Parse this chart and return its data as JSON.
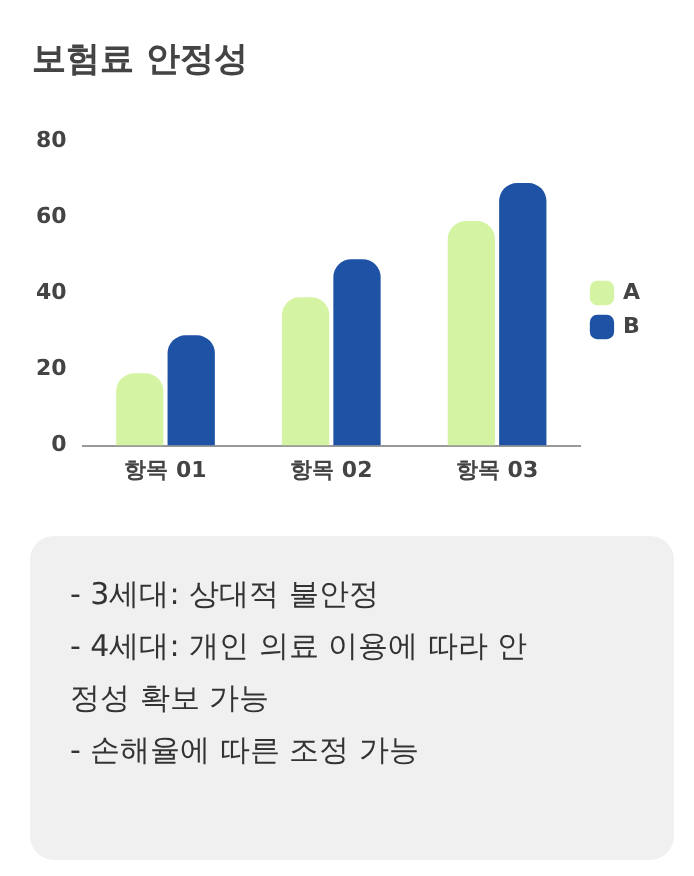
{
  "chart_data": {
    "type": "bar",
    "title": "보험료 안정성",
    "categories": [
      "항목 01",
      "항목 02",
      "항목 03"
    ],
    "series": [
      {
        "name": "A",
        "color": "#d4f4a4",
        "values": [
          19,
          39,
          59
        ]
      },
      {
        "name": "B",
        "color": "#1e52a4",
        "values": [
          29,
          49,
          69
        ]
      }
    ],
    "ylim": [
      0,
      80
    ],
    "yticks": [
      0,
      20,
      40,
      60,
      80
    ],
    "grid": false,
    "legend": "right",
    "annotations": [
      "- 3세대: 상대적 불안정",
      "- 4세대: 개인 의료 이용에 따라 안정성 확보 가능",
      "- 손해율에 따른 조정 가능"
    ]
  }
}
